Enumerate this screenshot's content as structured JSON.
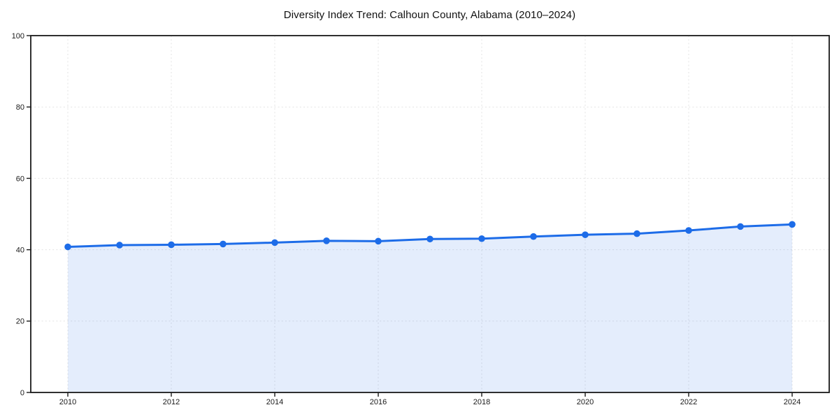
{
  "page": {
    "background_color": "#ffffff",
    "text_color": "#1a1a1a"
  },
  "chart_data": {
    "type": "area",
    "title": "Diversity Index Trend: Calhoun County, Alabama (2010–2024)",
    "xlabel": "",
    "ylabel": "",
    "x": [
      2010,
      2011,
      2012,
      2013,
      2014,
      2015,
      2016,
      2017,
      2018,
      2019,
      2020,
      2021,
      2022,
      2023,
      2024
    ],
    "series": [
      {
        "name": "Diversity Index",
        "values": [
          40.8,
          41.3,
          41.4,
          41.6,
          42.0,
          42.5,
          42.4,
          43.0,
          43.1,
          43.7,
          44.2,
          44.5,
          45.4,
          46.5,
          47.1
        ]
      }
    ],
    "ylim": [
      0,
      100
    ],
    "yticks": [
      0,
      20,
      40,
      60,
      80,
      100
    ],
    "xticks": [
      2010,
      2012,
      2014,
      2016,
      2018,
      2020,
      2022,
      2024
    ],
    "grid": true,
    "grid_style": "dashed",
    "legend_position": "none",
    "marker": "circle",
    "colors": {
      "line": "#1d6ce8",
      "marker": "#1d6ce8",
      "fill": "rgba(29,108,232,0.12)",
      "grid": "#e3e3e3",
      "frame": "#1a1a1a",
      "tick_text": "#1a1a1a",
      "title_text": "#111111"
    }
  }
}
